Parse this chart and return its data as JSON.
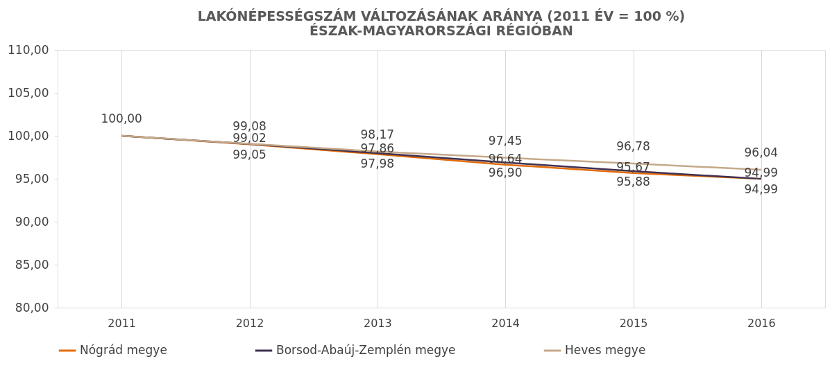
{
  "chart_data": {
    "type": "line",
    "title": [
      "LAKÓNÉPESSÉGSZÁM VÁLTOZÁSÁNAK ARÁNYA (2011 ÉV = 100 %)",
      "ÉSZAK-MAGYARORSZÁGI RÉGIÓBAN"
    ],
    "categories": [
      "2011",
      "2012",
      "2013",
      "2014",
      "2015",
      "2016"
    ],
    "series": [
      {
        "name": "Nógrád megye",
        "color": "#e36c09",
        "values": [
          100.0,
          99.02,
          97.86,
          96.64,
          95.67,
          94.99
        ],
        "value_labels": [
          null,
          "99,02",
          "97,86",
          "96,64",
          "95,67",
          "94,99"
        ]
      },
      {
        "name": "Borsod-Abaúj-Zemplén megye",
        "color": "#403152",
        "values": [
          100.0,
          99.05,
          97.98,
          96.9,
          95.88,
          94.99
        ],
        "value_labels": [
          null,
          "99,05",
          "97,98",
          "96,90",
          "95,88",
          "94,99"
        ]
      },
      {
        "name": "Heves megye",
        "color": "#c4a98a",
        "values": [
          100.0,
          99.08,
          98.17,
          97.45,
          96.78,
          96.04
        ],
        "value_labels": [
          "100,00",
          "99,08",
          "98,17",
          "97,45",
          "96,78",
          "96,04"
        ]
      }
    ],
    "ylim": [
      80,
      110
    ],
    "yticks": [
      {
        "value": 80,
        "label": "80,00"
      },
      {
        "value": 85,
        "label": "85,00"
      },
      {
        "value": 90,
        "label": "90,00"
      },
      {
        "value": 95,
        "label": "95,00"
      },
      {
        "value": 100,
        "label": "100,00"
      },
      {
        "value": 105,
        "label": "105,00"
      },
      {
        "value": 110,
        "label": "110,00"
      }
    ],
    "grid": "x",
    "legend": "bottom",
    "marker": "none",
    "line_style": "solid"
  }
}
